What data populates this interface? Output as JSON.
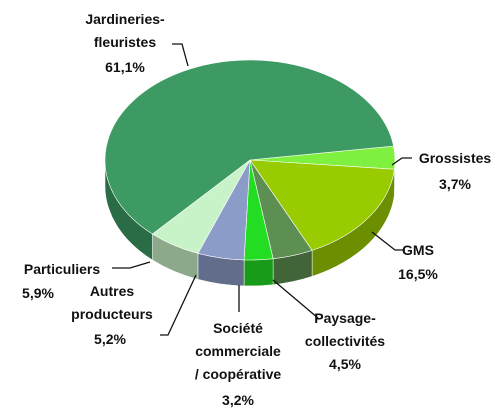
{
  "chart_data": {
    "type": "pie",
    "categories": [
      "Grossistes",
      "GMS",
      "Paysage-\ncollectivités",
      "Société\ncommerciale\n/ coopérative",
      "Autres\nproducteurs",
      "Particuliers",
      "Jardineries-\nfleuristes"
    ],
    "values": [
      3.7,
      16.5,
      4.5,
      3.2,
      5.2,
      5.9,
      61.1
    ],
    "value_labels": [
      "3,7%",
      "16,5%",
      "4,5%",
      "3,2%",
      "5,2%",
      "5,9%",
      "61,1%"
    ],
    "colors": [
      "#80f040",
      "#99cc00",
      "#5e8f52",
      "#22dd22",
      "#8c9cc8",
      "#c8f2c8",
      "#3c9a62"
    ]
  }
}
